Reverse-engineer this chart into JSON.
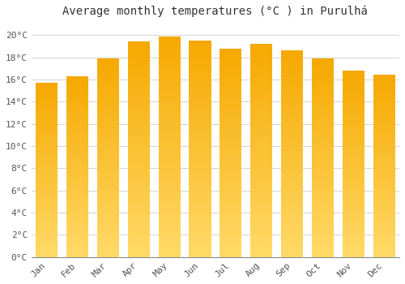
{
  "title": "Average monthly temperatures (°C ) in Purulhá",
  "months": [
    "Jan",
    "Feb",
    "Mar",
    "Apr",
    "May",
    "Jun",
    "Jul",
    "Aug",
    "Sep",
    "Oct",
    "Nov",
    "Dec"
  ],
  "values": [
    15.7,
    16.3,
    17.9,
    19.4,
    19.9,
    19.5,
    18.8,
    19.2,
    18.6,
    17.9,
    16.8,
    16.4
  ],
  "bar_color_top": "#F5A800",
  "bar_color_bottom": "#FFD966",
  "background_color": "#FFFFFF",
  "grid_color": "#CCCCCC",
  "ylim": [
    0,
    21
  ],
  "yticks": [
    0,
    2,
    4,
    6,
    8,
    10,
    12,
    14,
    16,
    18,
    20
  ],
  "title_fontsize": 10,
  "tick_fontsize": 8,
  "fig_width": 5.0,
  "fig_height": 3.5,
  "dpi": 100
}
